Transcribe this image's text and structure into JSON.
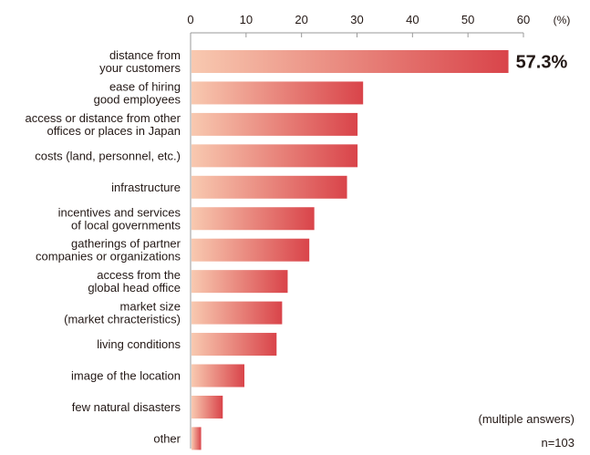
{
  "chart_data": {
    "type": "bar",
    "orientation": "horizontal",
    "categories": [
      [
        "distance from",
        "your customers"
      ],
      [
        "ease of hiring",
        "good employees"
      ],
      [
        "access or distance from other",
        "offices or places in Japan"
      ],
      [
        "costs (land, personnel, etc.)"
      ],
      [
        "infrastructure"
      ],
      [
        "incentives and services",
        "of local governments"
      ],
      [
        "gatherings of partner",
        "companies or organizations"
      ],
      [
        "access from the",
        "global head office"
      ],
      [
        "market size",
        "(market chracteristics)"
      ],
      [
        "living conditions"
      ],
      [
        "image of the location"
      ],
      [
        "few natural disasters"
      ],
      [
        "other"
      ]
    ],
    "values": [
      57.3,
      31.1,
      30.1,
      30.1,
      28.2,
      22.3,
      21.4,
      17.5,
      16.5,
      15.5,
      9.7,
      5.8,
      1.9
    ],
    "value_labels": [
      "57.3%",
      "",
      "",
      "",
      "",
      "",
      "",
      "",
      "",
      "",
      "",
      "",
      ""
    ],
    "xlim": [
      0,
      60
    ],
    "xticks": [
      0,
      10,
      20,
      30,
      40,
      50,
      60
    ],
    "xlabel": "(%)",
    "axis_position": "top",
    "grid": false,
    "colors": {
      "bar_start": "#f8c9b0",
      "bar_end": "#d9444a",
      "text": "#231815",
      "axis": "#9a9a9a"
    }
  },
  "notes": {
    "multiple": "(multiple answers)",
    "n": "n=103"
  }
}
